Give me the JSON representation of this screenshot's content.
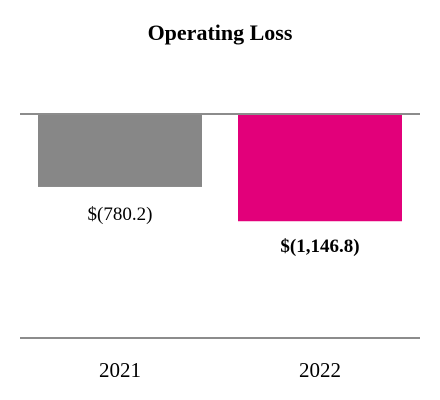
{
  "chart_data": {
    "type": "bar",
    "title": "Operating Loss",
    "categories": [
      "2021",
      "2022"
    ],
    "values": [
      -780.2,
      -1146.8
    ],
    "data_labels": [
      "$(780.2)",
      "$(1,146.8)"
    ],
    "data_label_bold": [
      false,
      true
    ],
    "colors": [
      "#878787",
      "#e2007a"
    ],
    "xlabel": "",
    "ylabel": "",
    "ylim": [
      -4000,
      0
    ],
    "grid": false,
    "legend": "none",
    "axis_color": "#8c8c8c"
  }
}
